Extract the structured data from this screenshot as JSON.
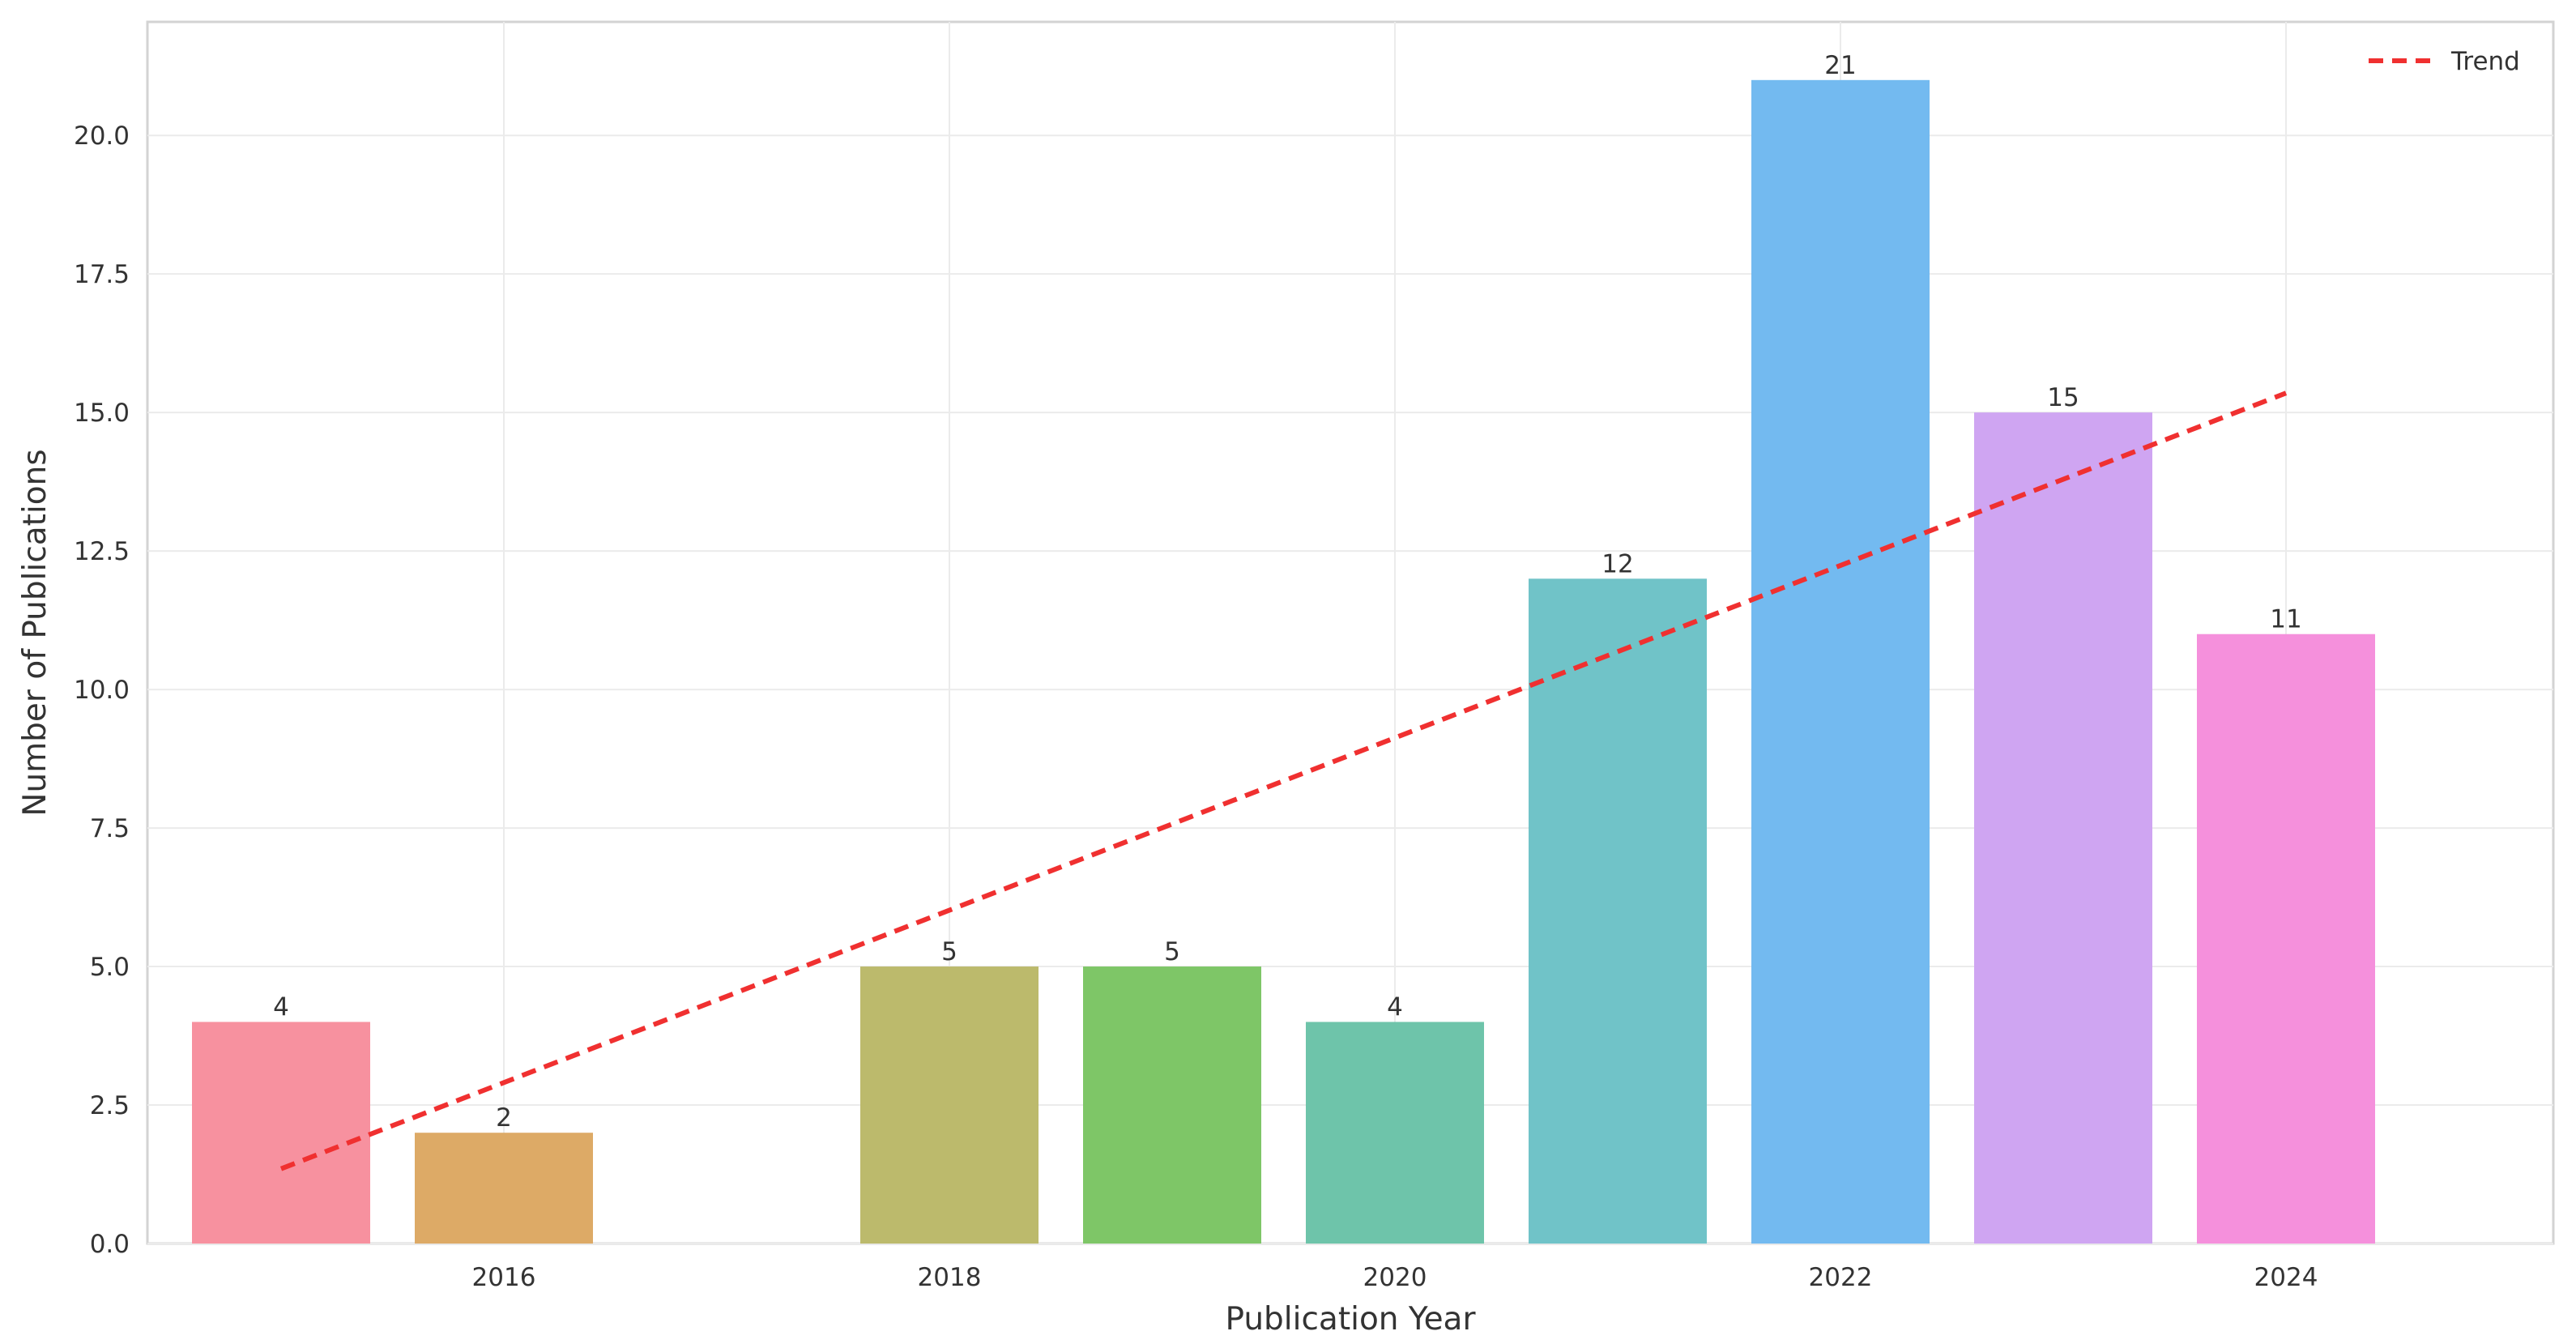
{
  "chart_data": {
    "type": "bar",
    "xlabel": "Publication Year",
    "ylabel": "Number of Publications",
    "x": [
      2015,
      2016,
      2018,
      2019,
      2020,
      2021,
      2022,
      2023,
      2024
    ],
    "values": [
      4,
      2,
      5,
      5,
      4,
      12,
      21,
      15,
      11
    ],
    "data_labels": [
      "4",
      "2",
      "5",
      "5",
      "4",
      "12",
      "21",
      "15",
      "11"
    ],
    "bar_colors": [
      "#f7919f",
      "#ddaa66",
      "#bcba6c",
      "#7ec667",
      "#6ec4aa",
      "#70c3c8",
      "#73baf0",
      "#cfa5f2",
      "#f590dc"
    ],
    "xlim": [
      2014.4,
      2025.2
    ],
    "ylim": [
      0,
      22.05
    ],
    "xticks": [
      2016,
      2018,
      2020,
      2022,
      2024
    ],
    "xtick_labels": [
      "2016",
      "2018",
      "2020",
      "2022",
      "2024"
    ],
    "yticks": [
      0,
      2.5,
      5,
      7.5,
      10,
      12.5,
      15,
      17.5,
      20
    ],
    "ytick_labels": [
      "0.0",
      "2.5",
      "5.0",
      "7.5",
      "10.0",
      "12.5",
      "15.0",
      "17.5",
      "20.0"
    ],
    "grid": true,
    "trend": {
      "name": "Trend",
      "style": "dashed",
      "color": "#f03030",
      "x": [
        2015,
        2024
      ],
      "y": [
        1.35,
        15.35
      ]
    },
    "legend": {
      "placement": "top-right",
      "entries": [
        "Trend"
      ]
    }
  }
}
